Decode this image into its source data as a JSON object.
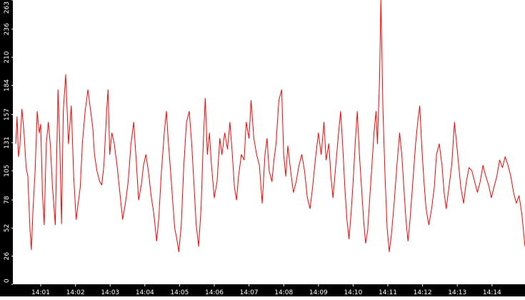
{
  "theme": {
    "background": "#ffffff",
    "axis_band": "#000000",
    "tick_text": "#ffffff",
    "series_color": "#ff0000"
  },
  "chart_data": {
    "type": "line",
    "title": "",
    "xlabel": "",
    "ylabel": "",
    "grid": false,
    "legend": "none",
    "ylim": [
      0,
      263
    ],
    "y_ticks": [
      0,
      26,
      52,
      78,
      105,
      131,
      157,
      184,
      210,
      236,
      263
    ],
    "y_tick_labels": [
      "0",
      "26",
      "52",
      "78",
      "105",
      "131",
      "157",
      "184",
      "210",
      "236",
      "263"
    ],
    "x_ticks": [
      "14:01",
      "14:02",
      "14:03",
      "14:04",
      "14:05",
      "14:06",
      "14:07",
      "14:08",
      "14:09",
      "14:10",
      "14:11",
      "14:12",
      "14:13",
      "14:14"
    ],
    "x_range_minutes": [
      0.28,
      14.95
    ],
    "series": [
      {
        "values": [
          [
            0.28,
            130
          ],
          [
            0.32,
            155
          ],
          [
            0.36,
            118
          ],
          [
            0.4,
            128
          ],
          [
            0.46,
            162
          ],
          [
            0.52,
            140
          ],
          [
            0.58,
            108
          ],
          [
            0.63,
            100
          ],
          [
            0.69,
            52
          ],
          [
            0.73,
            32
          ],
          [
            0.78,
            70
          ],
          [
            0.84,
            105
          ],
          [
            0.9,
            160
          ],
          [
            0.96,
            140
          ],
          [
            1.0,
            148
          ],
          [
            1.05,
            85
          ],
          [
            1.1,
            55
          ],
          [
            1.16,
            130
          ],
          [
            1.22,
            150
          ],
          [
            1.28,
            128
          ],
          [
            1.34,
            90
          ],
          [
            1.42,
            55
          ],
          [
            1.5,
            180
          ],
          [
            1.55,
            130
          ],
          [
            1.6,
            56
          ],
          [
            1.65,
            160
          ],
          [
            1.72,
            194
          ],
          [
            1.8,
            130
          ],
          [
            1.88,
            165
          ],
          [
            1.95,
            100
          ],
          [
            2.02,
            60
          ],
          [
            2.08,
            75
          ],
          [
            2.14,
            90
          ],
          [
            2.2,
            130
          ],
          [
            2.28,
            160
          ],
          [
            2.36,
            180
          ],
          [
            2.44,
            160
          ],
          [
            2.5,
            145
          ],
          [
            2.55,
            120
          ],
          [
            2.62,
            105
          ],
          [
            2.7,
            95
          ],
          [
            2.76,
            92
          ],
          [
            2.82,
            110
          ],
          [
            2.9,
            160
          ],
          [
            2.94,
            180
          ],
          [
            2.99,
            120
          ],
          [
            3.05,
            140
          ],
          [
            3.12,
            130
          ],
          [
            3.2,
            110
          ],
          [
            3.28,
            85
          ],
          [
            3.36,
            60
          ],
          [
            3.44,
            75
          ],
          [
            3.52,
            95
          ],
          [
            3.6,
            130
          ],
          [
            3.68,
            150
          ],
          [
            3.75,
            115
          ],
          [
            3.82,
            78
          ],
          [
            3.9,
            92
          ],
          [
            3.96,
            110
          ],
          [
            4.03,
            120
          ],
          [
            4.1,
            105
          ],
          [
            4.18,
            82
          ],
          [
            4.26,
            65
          ],
          [
            4.34,
            40
          ],
          [
            4.4,
            60
          ],
          [
            4.48,
            105
          ],
          [
            4.56,
            140
          ],
          [
            4.62,
            160
          ],
          [
            4.68,
            130
          ],
          [
            4.74,
            105
          ],
          [
            4.8,
            78
          ],
          [
            4.86,
            52
          ],
          [
            4.92,
            42
          ],
          [
            4.98,
            30
          ],
          [
            5.05,
            55
          ],
          [
            5.12,
            108
          ],
          [
            5.2,
            150
          ],
          [
            5.28,
            160
          ],
          [
            5.35,
            130
          ],
          [
            5.42,
            90
          ],
          [
            5.48,
            55
          ],
          [
            5.55,
            35
          ],
          [
            5.62,
            70
          ],
          [
            5.68,
            130
          ],
          [
            5.74,
            172
          ],
          [
            5.8,
            120
          ],
          [
            5.86,
            140
          ],
          [
            5.92,
            110
          ],
          [
            6.0,
            80
          ],
          [
            6.08,
            95
          ],
          [
            6.16,
            135
          ],
          [
            6.22,
            120
          ],
          [
            6.3,
            140
          ],
          [
            6.38,
            125
          ],
          [
            6.45,
            150
          ],
          [
            6.52,
            120
          ],
          [
            6.58,
            90
          ],
          [
            6.64,
            78
          ],
          [
            6.7,
            100
          ],
          [
            6.78,
            120
          ],
          [
            6.86,
            115
          ],
          [
            6.92,
            150
          ],
          [
            7.0,
            135
          ],
          [
            7.06,
            170
          ],
          [
            7.14,
            135
          ],
          [
            7.22,
            120
          ],
          [
            7.3,
            110
          ],
          [
            7.38,
            75
          ],
          [
            7.46,
            120
          ],
          [
            7.52,
            135
          ],
          [
            7.58,
            105
          ],
          [
            7.66,
            95
          ],
          [
            7.72,
            115
          ],
          [
            7.78,
            130
          ],
          [
            7.86,
            170
          ],
          [
            7.94,
            180
          ],
          [
            8.0,
            120
          ],
          [
            8.06,
            100
          ],
          [
            8.12,
            128
          ],
          [
            8.2,
            105
          ],
          [
            8.28,
            85
          ],
          [
            8.36,
            95
          ],
          [
            8.44,
            110
          ],
          [
            8.52,
            120
          ],
          [
            8.6,
            105
          ],
          [
            8.68,
            80
          ],
          [
            8.76,
            70
          ],
          [
            8.84,
            92
          ],
          [
            8.92,
            118
          ],
          [
            9.0,
            140
          ],
          [
            9.08,
            120
          ],
          [
            9.16,
            150
          ],
          [
            9.22,
            115
          ],
          [
            9.3,
            130
          ],
          [
            9.36,
            100
          ],
          [
            9.42,
            80
          ],
          [
            9.5,
            110
          ],
          [
            9.58,
            140
          ],
          [
            9.64,
            160
          ],
          [
            9.7,
            128
          ],
          [
            9.76,
            90
          ],
          [
            9.82,
            60
          ],
          [
            9.88,
            42
          ],
          [
            9.94,
            65
          ],
          [
            10.0,
            95
          ],
          [
            10.06,
            130
          ],
          [
            10.12,
            160
          ],
          [
            10.18,
            120
          ],
          [
            10.24,
            90
          ],
          [
            10.3,
            60
          ],
          [
            10.36,
            38
          ],
          [
            10.42,
            50
          ],
          [
            10.48,
            80
          ],
          [
            10.54,
            110
          ],
          [
            10.6,
            140
          ],
          [
            10.66,
            160
          ],
          [
            10.7,
            130
          ],
          [
            10.76,
            190
          ],
          [
            10.8,
            263
          ],
          [
            10.86,
            160
          ],
          [
            10.92,
            100
          ],
          [
            10.98,
            52
          ],
          [
            11.04,
            30
          ],
          [
            11.1,
            45
          ],
          [
            11.18,
            75
          ],
          [
            11.26,
            110
          ],
          [
            11.34,
            140
          ],
          [
            11.4,
            120
          ],
          [
            11.46,
            90
          ],
          [
            11.52,
            60
          ],
          [
            11.58,
            40
          ],
          [
            11.64,
            60
          ],
          [
            11.72,
            95
          ],
          [
            11.8,
            130
          ],
          [
            11.86,
            150
          ],
          [
            11.92,
            165
          ],
          [
            11.98,
            125
          ],
          [
            12.04,
            95
          ],
          [
            12.1,
            70
          ],
          [
            12.18,
            55
          ],
          [
            12.26,
            70
          ],
          [
            12.34,
            90
          ],
          [
            12.4,
            120
          ],
          [
            12.48,
            130
          ],
          [
            12.56,
            110
          ],
          [
            12.62,
            85
          ],
          [
            12.68,
            70
          ],
          [
            12.76,
            90
          ],
          [
            12.84,
            110
          ],
          [
            12.92,
            150
          ],
          [
            12.98,
            130
          ],
          [
            13.04,
            110
          ],
          [
            13.1,
            90
          ],
          [
            13.18,
            75
          ],
          [
            13.26,
            95
          ],
          [
            13.34,
            108
          ],
          [
            13.42,
            105
          ],
          [
            13.5,
            95
          ],
          [
            13.58,
            85
          ],
          [
            13.66,
            95
          ],
          [
            13.74,
            110
          ],
          [
            13.82,
            100
          ],
          [
            13.9,
            92
          ],
          [
            13.98,
            80
          ],
          [
            14.06,
            90
          ],
          [
            14.14,
            100
          ],
          [
            14.22,
            115
          ],
          [
            14.3,
            108
          ],
          [
            14.38,
            118
          ],
          [
            14.46,
            110
          ],
          [
            14.54,
            100
          ],
          [
            14.62,
            85
          ],
          [
            14.7,
            75
          ],
          [
            14.78,
            82
          ],
          [
            14.86,
            65
          ],
          [
            14.92,
            45
          ],
          [
            14.95,
            35
          ]
        ]
      }
    ]
  }
}
